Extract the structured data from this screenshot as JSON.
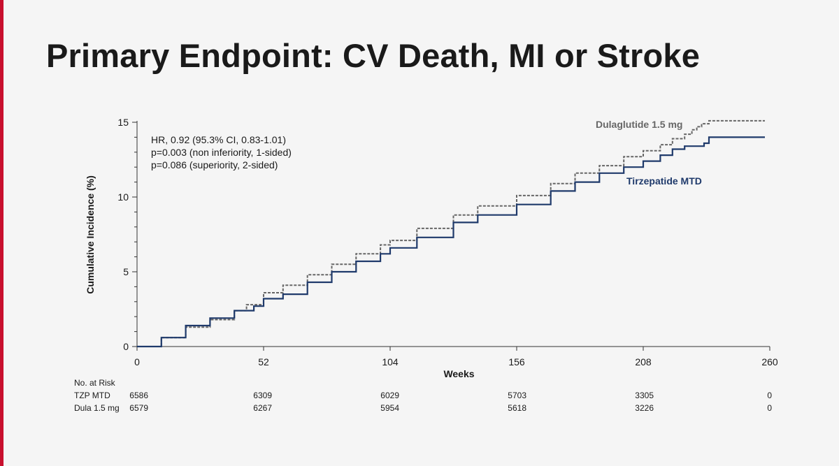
{
  "slide": {
    "title": "Primary Endpoint: CV Death, MI or Stroke"
  },
  "colors": {
    "accent": "#c8102e",
    "tirzepatide": "#1f3a6b",
    "dulaglutide": "#666666",
    "text": "#1a1a1a"
  },
  "chart_data": {
    "type": "line",
    "title": "Primary Endpoint: CV Death, MI or Stroke",
    "xlabel": "Weeks",
    "ylabel": "Cumulative Incidence (%)",
    "xlim": [
      0,
      260
    ],
    "ylim": [
      0,
      15
    ],
    "x_ticks": [
      0,
      52,
      104,
      156,
      208,
      260
    ],
    "y_ticks": [
      0,
      5,
      10,
      15
    ],
    "annotation": [
      "HR, 0.92 (95.3% CI, 0.83-1.01)",
      "p=0.003 (non inferiority, 1-sided)",
      "p=0.086 (superiority, 2-sided)"
    ],
    "series": [
      {
        "name": "Dulaglutide 1.5 mg",
        "style": "dashed",
        "color": "#666666",
        "x": [
          0,
          10,
          20,
          30,
          40,
          45,
          52,
          60,
          70,
          80,
          90,
          100,
          104,
          115,
          130,
          140,
          156,
          170,
          180,
          190,
          200,
          208,
          215,
          220,
          225,
          228,
          230,
          232,
          235,
          240,
          258
        ],
        "y": [
          0,
          0.6,
          1.3,
          1.8,
          2.4,
          2.8,
          3.6,
          4.1,
          4.8,
          5.5,
          6.2,
          6.8,
          7.1,
          7.9,
          8.8,
          9.4,
          10.1,
          10.9,
          11.6,
          12.1,
          12.7,
          13.1,
          13.5,
          13.9,
          14.2,
          14.5,
          14.7,
          14.9,
          15.1,
          15.1,
          15.1
        ]
      },
      {
        "name": "Tirzepatide MTD",
        "style": "solid",
        "color": "#1f3a6b",
        "x": [
          0,
          10,
          20,
          30,
          40,
          48,
          52,
          60,
          70,
          80,
          90,
          100,
          104,
          115,
          130,
          140,
          156,
          170,
          180,
          190,
          200,
          208,
          215,
          220,
          225,
          230,
          233,
          235,
          240,
          258
        ],
        "y": [
          0,
          0.6,
          1.4,
          1.9,
          2.4,
          2.7,
          3.2,
          3.5,
          4.3,
          5.0,
          5.7,
          6.2,
          6.6,
          7.3,
          8.3,
          8.8,
          9.5,
          10.4,
          11.0,
          11.6,
          12.0,
          12.4,
          12.8,
          13.2,
          13.4,
          13.4,
          13.6,
          14.0,
          14.0,
          14.0
        ]
      }
    ],
    "series_labels": [
      "Dulaglutide 1.5 mg",
      "Tirzepatide MTD"
    ],
    "risk_table": {
      "header": "No. at Risk",
      "rows": [
        {
          "label": "TZP MTD",
          "values": [
            6586,
            6309,
            6029,
            5703,
            3305,
            0
          ]
        },
        {
          "label": "Dula 1.5 mg",
          "values": [
            6579,
            6267,
            5954,
            5618,
            3226,
            0
          ]
        }
      ]
    }
  }
}
